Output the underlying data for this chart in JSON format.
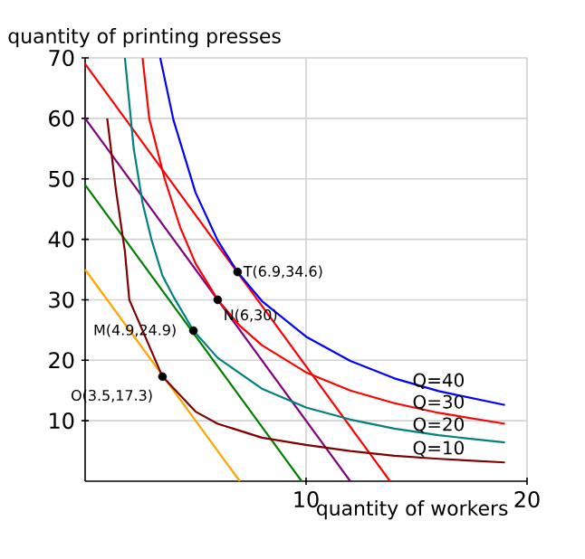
{
  "chart_data": {
    "type": "line",
    "xlabel": "quantity of workers",
    "ylabel": "quantity of printing presses",
    "xlim": [
      0,
      20
    ],
    "ylim": [
      0,
      70
    ],
    "xticks": [
      10,
      20
    ],
    "yticks": [
      10,
      20,
      30,
      40,
      50,
      60,
      70
    ],
    "grid": true,
    "line_style": "solid",
    "series": [
      {
        "type": "line",
        "color": "#ffa500",
        "x": [
          0,
          7
        ],
        "values": [
          35,
          0
        ]
      },
      {
        "type": "line",
        "color": "#008000",
        "x": [
          0,
          9.8
        ],
        "values": [
          49,
          0
        ]
      },
      {
        "type": "line",
        "color": "#800080",
        "x": [
          0,
          12
        ],
        "values": [
          60,
          0
        ]
      },
      {
        "type": "line",
        "color": "#ff0000",
        "x": [
          0,
          13.8
        ],
        "values": [
          69,
          0
        ]
      },
      {
        "name": "Q=40",
        "color": "#0000ff",
        "x": [
          3.4,
          4,
          5,
          6,
          6.9,
          8,
          10,
          12,
          14,
          16,
          19
        ],
        "values": [
          70,
          59.7,
          47.7,
          39.8,
          34.6,
          29.8,
          23.9,
          19.9,
          17,
          14.9,
          12.6
        ]
      },
      {
        "name": "Q=30",
        "color": "#ff0000",
        "x": [
          2.6,
          2.9,
          3.6,
          4.3,
          5,
          6,
          7,
          8,
          10,
          12,
          14,
          16,
          19
        ],
        "values": [
          70,
          60,
          50,
          42,
          36,
          30,
          25.7,
          22.5,
          18,
          15,
          12.9,
          11.3,
          9.5
        ]
      },
      {
        "name": "Q=20",
        "color": "#008080",
        "x": [
          1.8,
          2.2,
          2.6,
          3,
          3.5,
          4,
          4.9,
          6,
          8,
          10,
          12,
          14,
          16,
          19
        ],
        "values": [
          70,
          55,
          46,
          40,
          34,
          30.5,
          24.9,
          20.4,
          15.3,
          12.2,
          10.2,
          8.7,
          7.6,
          6.4
        ]
      },
      {
        "name": "Q=10",
        "color": "#800000",
        "x": [
          1,
          1.4,
          1.8,
          2,
          3.5,
          5,
          6,
          8,
          10,
          12,
          14,
          16,
          19
        ],
        "values": [
          60,
          48,
          38,
          30,
          17.3,
          11.5,
          9.5,
          7.2,
          6,
          5,
          4.2,
          3.7,
          3.1
        ]
      },
      {
        "type": "scatter",
        "color": "#000000",
        "x": [
          3.5,
          4.9,
          6,
          6.9
        ],
        "values": [
          17.3,
          24.9,
          30,
          34.6
        ]
      }
    ],
    "annotations": [
      {
        "text": "O(3.5,17.3)",
        "x": 3.5,
        "y": 17.3
      },
      {
        "text": "M(4.9,24.9)",
        "x": 4.9,
        "y": 24.9
      },
      {
        "text": "N(6,30)",
        "x": 6,
        "y": 30
      },
      {
        "text": "T(6.9,34.6)",
        "x": 6.9,
        "y": 34.6
      }
    ]
  }
}
